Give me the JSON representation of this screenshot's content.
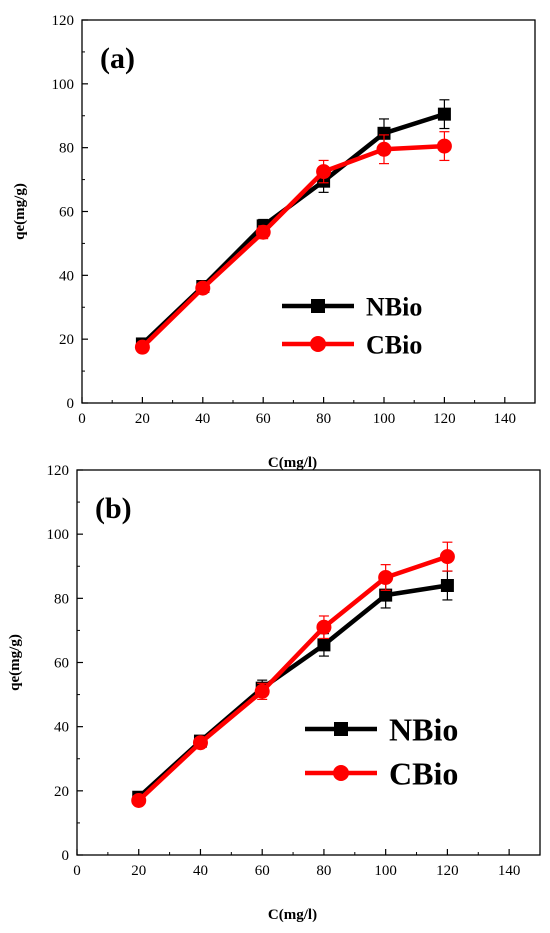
{
  "chart_data": [
    {
      "type": "line",
      "panel_label": "(a)",
      "xlabel": "C(mg/l)",
      "ylabel": "qe(mg/g)",
      "xlim": [
        0,
        150
      ],
      "ylim": [
        0,
        120
      ],
      "x_ticks": [
        0,
        20,
        40,
        60,
        80,
        100,
        120,
        140
      ],
      "y_ticks": [
        0,
        20,
        40,
        60,
        80,
        100,
        120
      ],
      "x": [
        20,
        40,
        60,
        80,
        100,
        120
      ],
      "series": [
        {
          "name": "NBio",
          "marker": "square",
          "color": "#000000",
          "values": [
            18.5,
            36.5,
            55.5,
            69.5,
            84.5,
            90.5
          ],
          "errors": [
            1,
            1,
            2,
            3.5,
            4.5,
            4.5
          ]
        },
        {
          "name": "CBio",
          "marker": "circle",
          "color": "#ff0000",
          "values": [
            17.5,
            36,
            53.5,
            72.5,
            79.5,
            80.5
          ],
          "errors": [
            1,
            1,
            2,
            3.5,
            4.5,
            4.5
          ]
        }
      ],
      "legend_position": "center-right",
      "grid": false
    },
    {
      "type": "line",
      "panel_label": "(b)",
      "xlabel": "C(mg/l)",
      "ylabel": "qe(mg/g)",
      "xlim": [
        0,
        150
      ],
      "ylim": [
        0,
        120
      ],
      "x_ticks": [
        0,
        20,
        40,
        60,
        80,
        100,
        120,
        140
      ],
      "y_ticks": [
        0,
        20,
        40,
        60,
        80,
        100,
        120
      ],
      "x": [
        20,
        40,
        60,
        80,
        100,
        120
      ],
      "series": [
        {
          "name": "NBio",
          "marker": "square",
          "color": "#000000",
          "values": [
            18,
            35.5,
            52,
            65.5,
            81,
            84
          ],
          "errors": [
            1,
            1,
            2.5,
            3.5,
            4,
            4.5
          ]
        },
        {
          "name": "CBio",
          "marker": "circle",
          "color": "#ff0000",
          "values": [
            17,
            35,
            51,
            71,
            86.5,
            93
          ],
          "errors": [
            1,
            1,
            2.5,
            3.5,
            4,
            4.5
          ]
        }
      ],
      "legend_position": "center-right",
      "grid": false
    }
  ]
}
